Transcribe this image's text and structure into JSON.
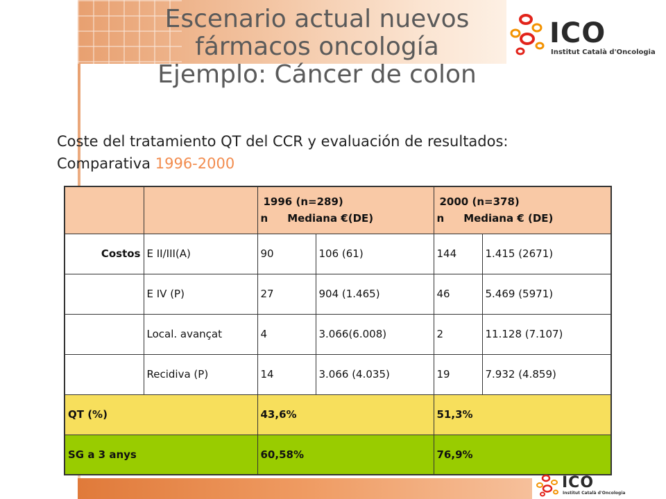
{
  "title": {
    "line1": "Escenario actual nuevos",
    "line2": "fármacos oncología",
    "line3": "Ejemplo: Cáncer de colon"
  },
  "subtitle": {
    "text": "Coste del tratamiento QT del CCR y evaluación de resultados: Comparativa",
    "years": "1996-2000"
  },
  "logo": {
    "name": "ICO",
    "full_name": "Institut Català d'Oncologia"
  },
  "table": {
    "group_1996": {
      "label": "1996 (n=289)",
      "n": "n",
      "median": "Mediana €(DE)"
    },
    "group_2000": {
      "label": "2000 (n=378)",
      "n": "n",
      "median": "Mediana € (DE)"
    },
    "rows": [
      {
        "category": "Costos",
        "stage": "E II/III(A)",
        "n1996": "90",
        "med1996": "106 (61)",
        "n2000": "144",
        "med2000": "1.415 (2671)"
      },
      {
        "category": "",
        "stage": "E IV (P)",
        "n1996": "27",
        "med1996": "904 (1.465)",
        "n2000": "46",
        "med2000": "5.469 (5971)"
      },
      {
        "category": "",
        "stage": "Local. avançat",
        "n1996": "4",
        "med1996": "3.066(6.008)",
        "n2000": "2",
        "med2000": "11.128 (7.107)"
      },
      {
        "category": "",
        "stage": "Recidiva (P)",
        "n1996": "14",
        "med1996": "3.066 (4.035)",
        "n2000": "19",
        "med2000": "7.932 (4.859)"
      }
    ],
    "qt": {
      "label": "QT (%)",
      "v1996": "43,6%",
      "v2000": "51,3%"
    },
    "sg": {
      "label": "SG a 3 anys",
      "v1996": "60,58%",
      "v2000": "76,9%"
    }
  },
  "colors": {
    "header_bg": "#f9c9a6",
    "qt_bg": "#f7df5c",
    "sg_bg": "#99cc00",
    "accent_orange": "#f28c4e",
    "logo_red": "#e2231a",
    "logo_orange": "#f39200"
  }
}
